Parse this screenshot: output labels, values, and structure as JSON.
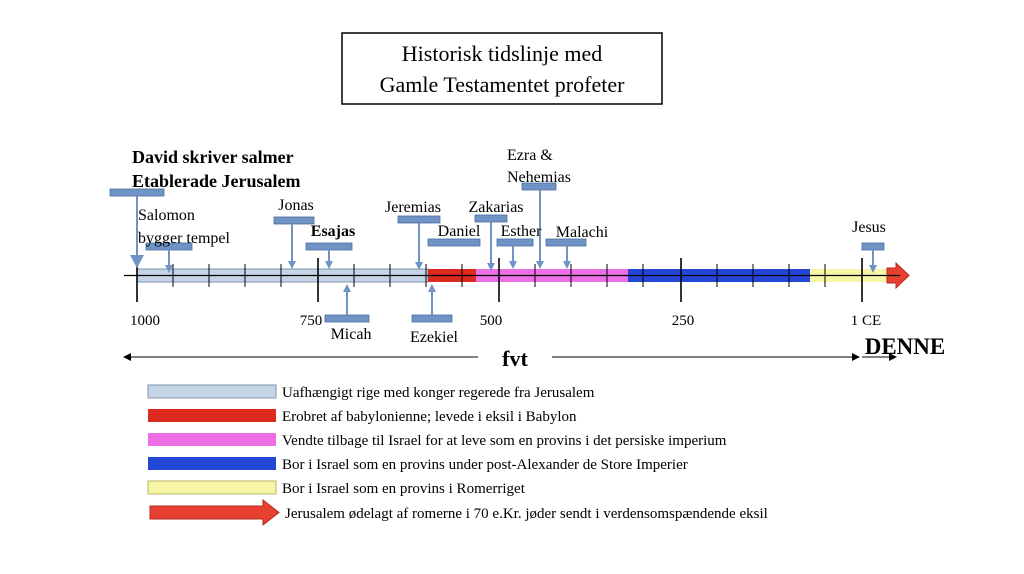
{
  "title": {
    "line1": "Historisk tidslinje med",
    "line2": "Gamle Testamentet profeter"
  },
  "headline": {
    "line1": "David skriver salmer",
    "line2": "Etablerade Jerusalem"
  },
  "events": {
    "salomon": {
      "line1": "Salomon",
      "line2": "bygger tempel"
    },
    "jonas": "Jonas",
    "esajas": "Esajas",
    "micah": "Micah",
    "jeremias": "Jeremias",
    "ezekiel": "Ezekiel",
    "daniel": "Daniel",
    "zakarias": "Zakarias",
    "esther": "Esther",
    "ezra": {
      "line1": "Ezra &",
      "line2": "Nehemias"
    },
    "malachi": "Malachi",
    "jesus": "Jesus"
  },
  "axis": {
    "ticks": [
      "1000",
      "750",
      "500",
      "250",
      "1 CE"
    ],
    "era_bce": "fvt",
    "era_ce": "DENNE"
  },
  "colors": {
    "kingdom": "#c5d5e6",
    "babylon": "#dd2a1e",
    "persian": "#ec6fe6",
    "alexander": "#2446d6",
    "roman": "#f7f5a6",
    "destroyed": "#e84030",
    "marker": "#6f93c5",
    "marker_stroke": "#4a6e9e"
  },
  "legend": [
    {
      "key": "kingdom",
      "text": "Uafhængigt rige med konger regerede fra Jerusalem"
    },
    {
      "key": "babylon",
      "text": "Erobret af babylonienne; levede i eksil i Babylon"
    },
    {
      "key": "persian",
      "text": "Vendte tilbage til Israel for at leve som en provins i det persiske imperium"
    },
    {
      "key": "alexander",
      "text": "Bor i Israel som en provins under post-Alexander de Store Imperier"
    },
    {
      "key": "roman",
      "text": "Bor i Israel som en provins i Romerriget"
    },
    {
      "key": "destroyed",
      "text": "Jerusalem ødelagt af romerne i 70 e.Kr. jøder sendt i verdensomspændende eksil"
    }
  ]
}
